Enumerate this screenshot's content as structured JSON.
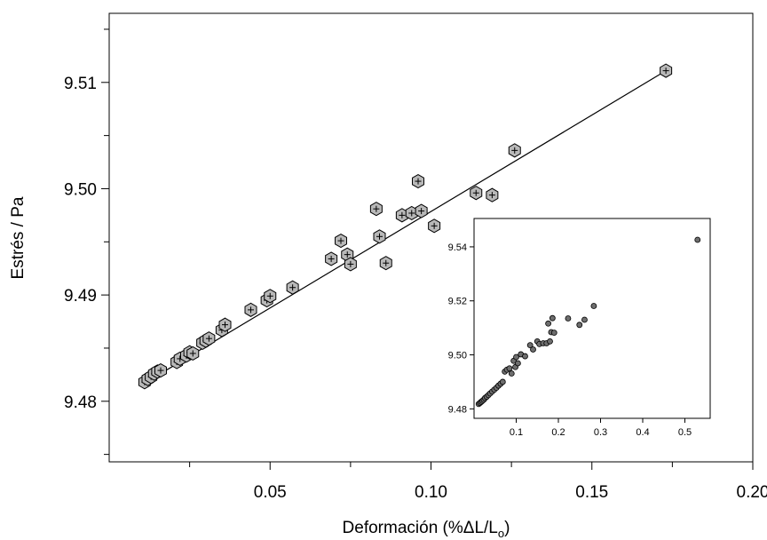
{
  "chart_data": [
    {
      "type": "scatter",
      "title": "",
      "xlabel": "Deformación (%ΔL/L",
      "xlabel_sub": "o",
      "xlabel_close": ")",
      "ylabel": "Estrés / Pa",
      "xlim": [
        0.0,
        0.2
      ],
      "ylim": [
        9.4743,
        9.5165
      ],
      "xticks": [
        0.05,
        0.1,
        0.15,
        0.2
      ],
      "xtick_labels": [
        "0.05",
        "0.10",
        "0.15",
        "0.20"
      ],
      "yticks": [
        9.48,
        9.49,
        9.5,
        9.51
      ],
      "ytick_labels": [
        "9.48",
        "9.49",
        "9.50",
        "9.51"
      ],
      "grid": false,
      "marker": "hexagon-with-plus",
      "marker_fill": "#b8b8b8",
      "fit_line": {
        "x": [
          0.011,
          0.173
        ],
        "y": [
          9.4817,
          9.5111
        ]
      },
      "x": [
        0.011,
        0.012,
        0.013,
        0.014,
        0.015,
        0.016,
        0.021,
        0.022,
        0.024,
        0.025,
        0.026,
        0.029,
        0.03,
        0.031,
        0.035,
        0.036,
        0.044,
        0.049,
        0.05,
        0.057,
        0.069,
        0.072,
        0.074,
        0.075,
        0.083,
        0.084,
        0.086,
        0.091,
        0.094,
        0.096,
        0.097,
        0.101,
        0.114,
        0.119,
        0.126,
        0.173
      ],
      "y": [
        9.4818,
        9.4821,
        9.4823,
        9.4826,
        9.4828,
        9.4829,
        9.4837,
        9.484,
        9.4843,
        9.4846,
        9.4845,
        9.4855,
        9.4857,
        9.4859,
        9.4867,
        9.4872,
        9.4886,
        9.4895,
        9.4899,
        9.4907,
        9.4934,
        9.4951,
        9.4938,
        9.4929,
        9.4981,
        9.4955,
        9.493,
        9.4975,
        9.4977,
        9.5007,
        9.4979,
        9.4965,
        9.4996,
        9.4994,
        9.5036,
        9.5111
      ]
    },
    {
      "type": "scatter",
      "title": "",
      "xlabel": "",
      "ylabel": "",
      "xlim": [
        0.0,
        0.56
      ],
      "ylim": [
        9.4765,
        9.5505
      ],
      "xticks": [
        0.1,
        0.2,
        0.3,
        0.4,
        0.5
      ],
      "xtick_labels": [
        "0.1",
        "0.2",
        "0.3",
        "0.4",
        "0.5"
      ],
      "yticks": [
        9.48,
        9.5,
        9.52,
        9.54
      ],
      "ytick_labels": [
        "9.48",
        "9.50",
        "9.52",
        "9.54"
      ],
      "grid": false,
      "legend": "none",
      "marker": "circle",
      "marker_fill": "#6e6e6e",
      "x": [
        0.011,
        0.014,
        0.017,
        0.02,
        0.023,
        0.026,
        0.03,
        0.034,
        0.038,
        0.043,
        0.048,
        0.053,
        0.058,
        0.063,
        0.068,
        0.073,
        0.078,
        0.084,
        0.089,
        0.094,
        0.098,
        0.1,
        0.104,
        0.111,
        0.121,
        0.133,
        0.14,
        0.15,
        0.155,
        0.164,
        0.172,
        0.176,
        0.18,
        0.183,
        0.186,
        0.19,
        0.223,
        0.25,
        0.262,
        0.284,
        0.53
      ],
      "y": [
        9.4818,
        9.4822,
        9.4826,
        9.483,
        9.4834,
        9.484,
        9.4845,
        9.4851,
        9.4857,
        9.4864,
        9.4871,
        9.4878,
        9.4886,
        9.4893,
        9.49,
        9.4938,
        9.4945,
        9.495,
        9.4931,
        9.4978,
        9.4955,
        9.4992,
        9.4969,
        9.5002,
        9.4995,
        9.5036,
        9.502,
        9.505,
        9.504,
        9.5043,
        9.5043,
        9.5116,
        9.505,
        9.5084,
        9.5136,
        9.5082,
        9.5135,
        9.5111,
        9.513,
        9.5181,
        9.5426
      ]
    }
  ]
}
